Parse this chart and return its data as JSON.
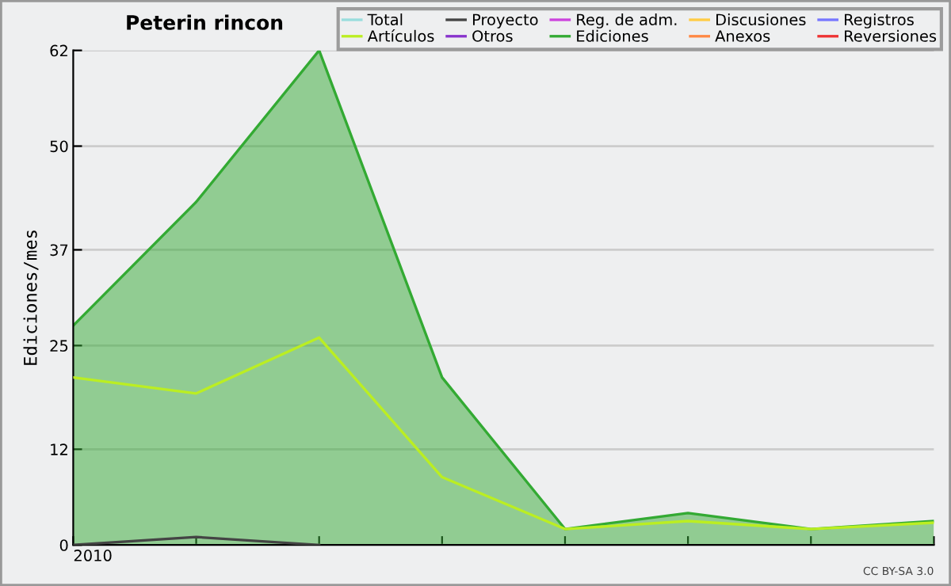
{
  "chart_data": {
    "type": "line",
    "title": "Peterin rincon",
    "ylabel": "Ediciones/mes",
    "categories": [
      "2010",
      null,
      null,
      null,
      null,
      null,
      null,
      null
    ],
    "series": [
      {
        "name": "Total",
        "color": "#99dddd",
        "values": [
          null,
          null,
          null,
          null,
          null,
          null,
          null,
          null
        ]
      },
      {
        "name": "Ediciones",
        "type": "area",
        "color": "#33aa33",
        "values": [
          27.5,
          43,
          62,
          21,
          2,
          4,
          2,
          3
        ]
      },
      {
        "name": "Artículos",
        "color": "#bbee22",
        "values": [
          21,
          19,
          26,
          8.5,
          2,
          3,
          2,
          2.8
        ]
      },
      {
        "name": "Discusiones",
        "color": "#ffcc44",
        "values": [
          null,
          null,
          null,
          null,
          null,
          null,
          null,
          null
        ]
      },
      {
        "name": "Proyecto",
        "color": "#444444",
        "values": [
          0,
          1,
          0,
          null,
          null,
          null,
          null,
          null
        ]
      },
      {
        "name": "Anexos",
        "color": "#ff8844",
        "values": [
          null,
          null,
          null,
          null,
          null,
          null,
          null,
          null
        ]
      },
      {
        "name": "Otros",
        "color": "#8833cc",
        "values": [
          null,
          null,
          null,
          null,
          null,
          null,
          null,
          null
        ]
      },
      {
        "name": "Registros",
        "color": "#7777ff",
        "values": [
          null,
          null,
          null,
          null,
          null,
          null,
          null,
          null
        ]
      },
      {
        "name": "Reg. de adm.",
        "color": "#cc44dd",
        "values": [
          null,
          null,
          null,
          null,
          null,
          null,
          null,
          null
        ]
      },
      {
        "name": "Reversiones",
        "color": "#ee3333",
        "values": [
          null,
          null,
          null,
          null,
          null,
          null,
          null,
          null
        ]
      }
    ],
    "ylim": [
      0,
      62
    ],
    "yticks": [
      0,
      12,
      25,
      37,
      50,
      62
    ],
    "grid": "y",
    "legend": "top right",
    "annotations": [
      "CC BY-SA 3.0"
    ]
  }
}
